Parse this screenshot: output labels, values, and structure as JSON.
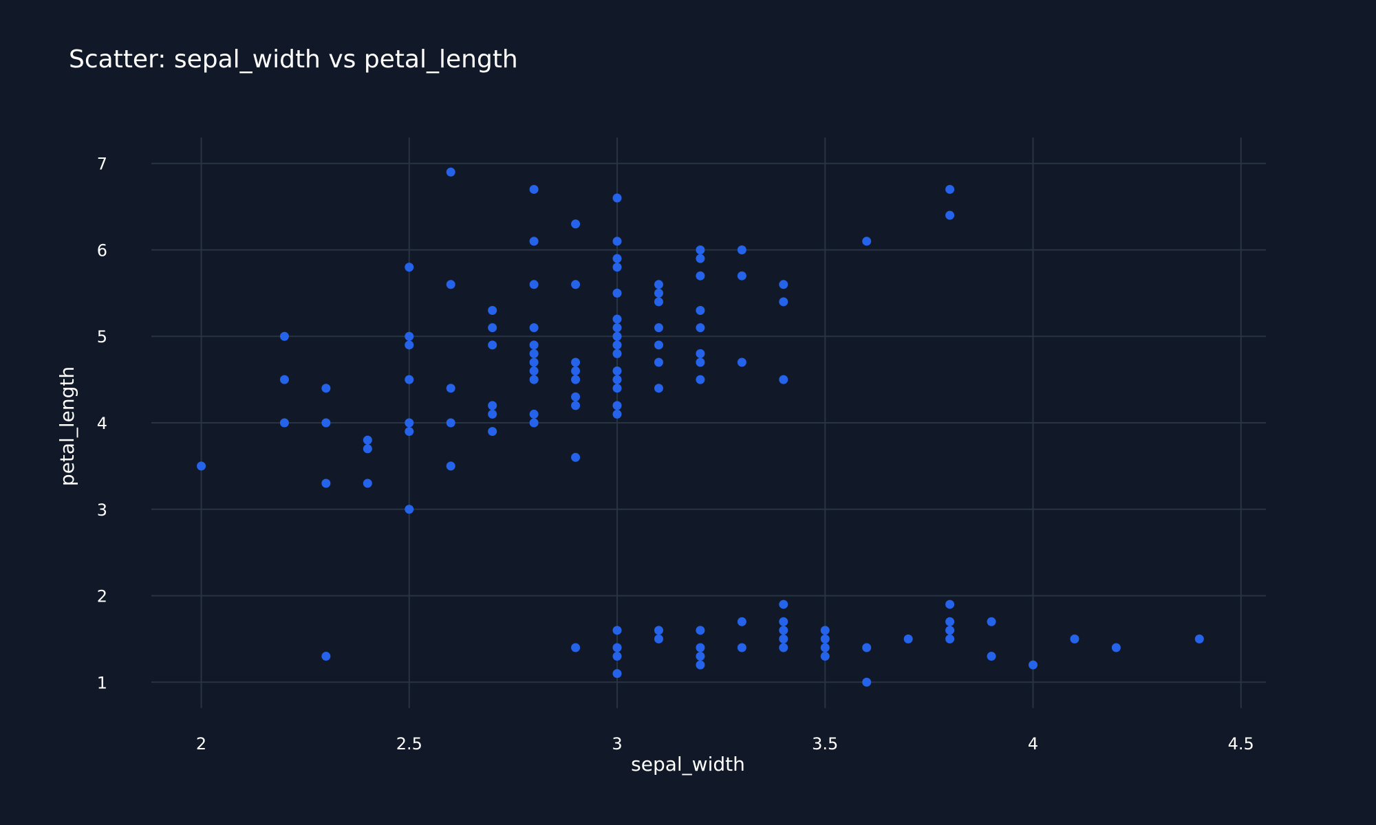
{
  "chart_data": {
    "type": "scatter",
    "title": "Scatter: sepal_width vs petal_length",
    "xlabel": "sepal_width",
    "ylabel": "petal_length",
    "xlim": [
      1.88,
      4.56
    ],
    "ylim": [
      0.7,
      7.3
    ],
    "x_ticks": [
      2,
      2.5,
      3,
      3.5,
      4,
      4.5
    ],
    "y_ticks": [
      1,
      2,
      3,
      4,
      5,
      6,
      7
    ],
    "x_tick_labels": [
      "2",
      "2.5",
      "3",
      "3.5",
      "4",
      "4.5"
    ],
    "y_tick_labels": [
      "1",
      "2",
      "3",
      "4",
      "5",
      "6",
      "7"
    ],
    "grid": true,
    "marker_color": "#2563eb",
    "background_color": "#111827",
    "grid_color": "#283442",
    "text_color": "#ffffff",
    "points": [
      [
        2.0,
        3.5
      ],
      [
        2.2,
        5.0
      ],
      [
        2.2,
        4.5
      ],
      [
        2.2,
        4.0
      ],
      [
        2.3,
        4.4
      ],
      [
        2.3,
        4.0
      ],
      [
        2.3,
        3.3
      ],
      [
        2.3,
        1.3
      ],
      [
        2.4,
        3.8
      ],
      [
        2.4,
        3.7
      ],
      [
        2.4,
        3.3
      ],
      [
        2.5,
        5.8
      ],
      [
        2.5,
        5.0
      ],
      [
        2.5,
        4.9
      ],
      [
        2.5,
        4.5
      ],
      [
        2.5,
        4.0
      ],
      [
        2.5,
        3.9
      ],
      [
        2.5,
        3.0
      ],
      [
        2.6,
        6.9
      ],
      [
        2.6,
        5.6
      ],
      [
        2.6,
        4.4
      ],
      [
        2.6,
        4.0
      ],
      [
        2.6,
        3.5
      ],
      [
        2.7,
        5.3
      ],
      [
        2.7,
        5.1
      ],
      [
        2.7,
        4.9
      ],
      [
        2.7,
        4.2
      ],
      [
        2.7,
        4.1
      ],
      [
        2.7,
        3.9
      ],
      [
        2.8,
        6.7
      ],
      [
        2.8,
        6.1
      ],
      [
        2.8,
        5.6
      ],
      [
        2.8,
        5.1
      ],
      [
        2.8,
        4.9
      ],
      [
        2.8,
        4.8
      ],
      [
        2.8,
        4.7
      ],
      [
        2.8,
        4.6
      ],
      [
        2.8,
        4.5
      ],
      [
        2.8,
        4.1
      ],
      [
        2.8,
        4.0
      ],
      [
        2.9,
        6.3
      ],
      [
        2.9,
        5.6
      ],
      [
        2.9,
        4.7
      ],
      [
        2.9,
        4.6
      ],
      [
        2.9,
        4.5
      ],
      [
        2.9,
        4.3
      ],
      [
        2.9,
        4.2
      ],
      [
        2.9,
        3.6
      ],
      [
        2.9,
        1.4
      ],
      [
        3.0,
        6.6
      ],
      [
        3.0,
        6.1
      ],
      [
        3.0,
        5.9
      ],
      [
        3.0,
        5.8
      ],
      [
        3.0,
        5.5
      ],
      [
        3.0,
        5.2
      ],
      [
        3.0,
        5.1
      ],
      [
        3.0,
        5.0
      ],
      [
        3.0,
        4.9
      ],
      [
        3.0,
        4.8
      ],
      [
        3.0,
        4.6
      ],
      [
        3.0,
        4.5
      ],
      [
        3.0,
        4.4
      ],
      [
        3.0,
        4.2
      ],
      [
        3.0,
        4.1
      ],
      [
        3.0,
        1.6
      ],
      [
        3.0,
        1.4
      ],
      [
        3.0,
        1.3
      ],
      [
        3.0,
        1.1
      ],
      [
        3.1,
        5.6
      ],
      [
        3.1,
        5.5
      ],
      [
        3.1,
        5.4
      ],
      [
        3.1,
        5.1
      ],
      [
        3.1,
        4.9
      ],
      [
        3.1,
        4.7
      ],
      [
        3.1,
        4.4
      ],
      [
        3.1,
        1.6
      ],
      [
        3.1,
        1.5
      ],
      [
        3.2,
        6.0
      ],
      [
        3.2,
        5.9
      ],
      [
        3.2,
        5.7
      ],
      [
        3.2,
        5.3
      ],
      [
        3.2,
        5.1
      ],
      [
        3.2,
        4.8
      ],
      [
        3.2,
        4.7
      ],
      [
        3.2,
        4.5
      ],
      [
        3.2,
        1.6
      ],
      [
        3.2,
        1.4
      ],
      [
        3.2,
        1.3
      ],
      [
        3.2,
        1.2
      ],
      [
        3.3,
        6.0
      ],
      [
        3.3,
        5.7
      ],
      [
        3.3,
        4.7
      ],
      [
        3.3,
        1.7
      ],
      [
        3.3,
        1.4
      ],
      [
        3.4,
        5.6
      ],
      [
        3.4,
        5.4
      ],
      [
        3.4,
        4.5
      ],
      [
        3.4,
        1.9
      ],
      [
        3.4,
        1.7
      ],
      [
        3.4,
        1.6
      ],
      [
        3.4,
        1.5
      ],
      [
        3.4,
        1.4
      ],
      [
        3.5,
        1.6
      ],
      [
        3.5,
        1.5
      ],
      [
        3.5,
        1.4
      ],
      [
        3.5,
        1.3
      ],
      [
        3.6,
        6.1
      ],
      [
        3.6,
        1.4
      ],
      [
        3.6,
        1.0
      ],
      [
        3.7,
        1.5
      ],
      [
        3.8,
        6.7
      ],
      [
        3.8,
        6.4
      ],
      [
        3.8,
        1.9
      ],
      [
        3.8,
        1.7
      ],
      [
        3.8,
        1.6
      ],
      [
        3.8,
        1.5
      ],
      [
        3.9,
        1.7
      ],
      [
        3.9,
        1.3
      ],
      [
        4.0,
        1.2
      ],
      [
        4.1,
        1.5
      ],
      [
        4.2,
        1.4
      ],
      [
        4.4,
        1.5
      ]
    ]
  }
}
